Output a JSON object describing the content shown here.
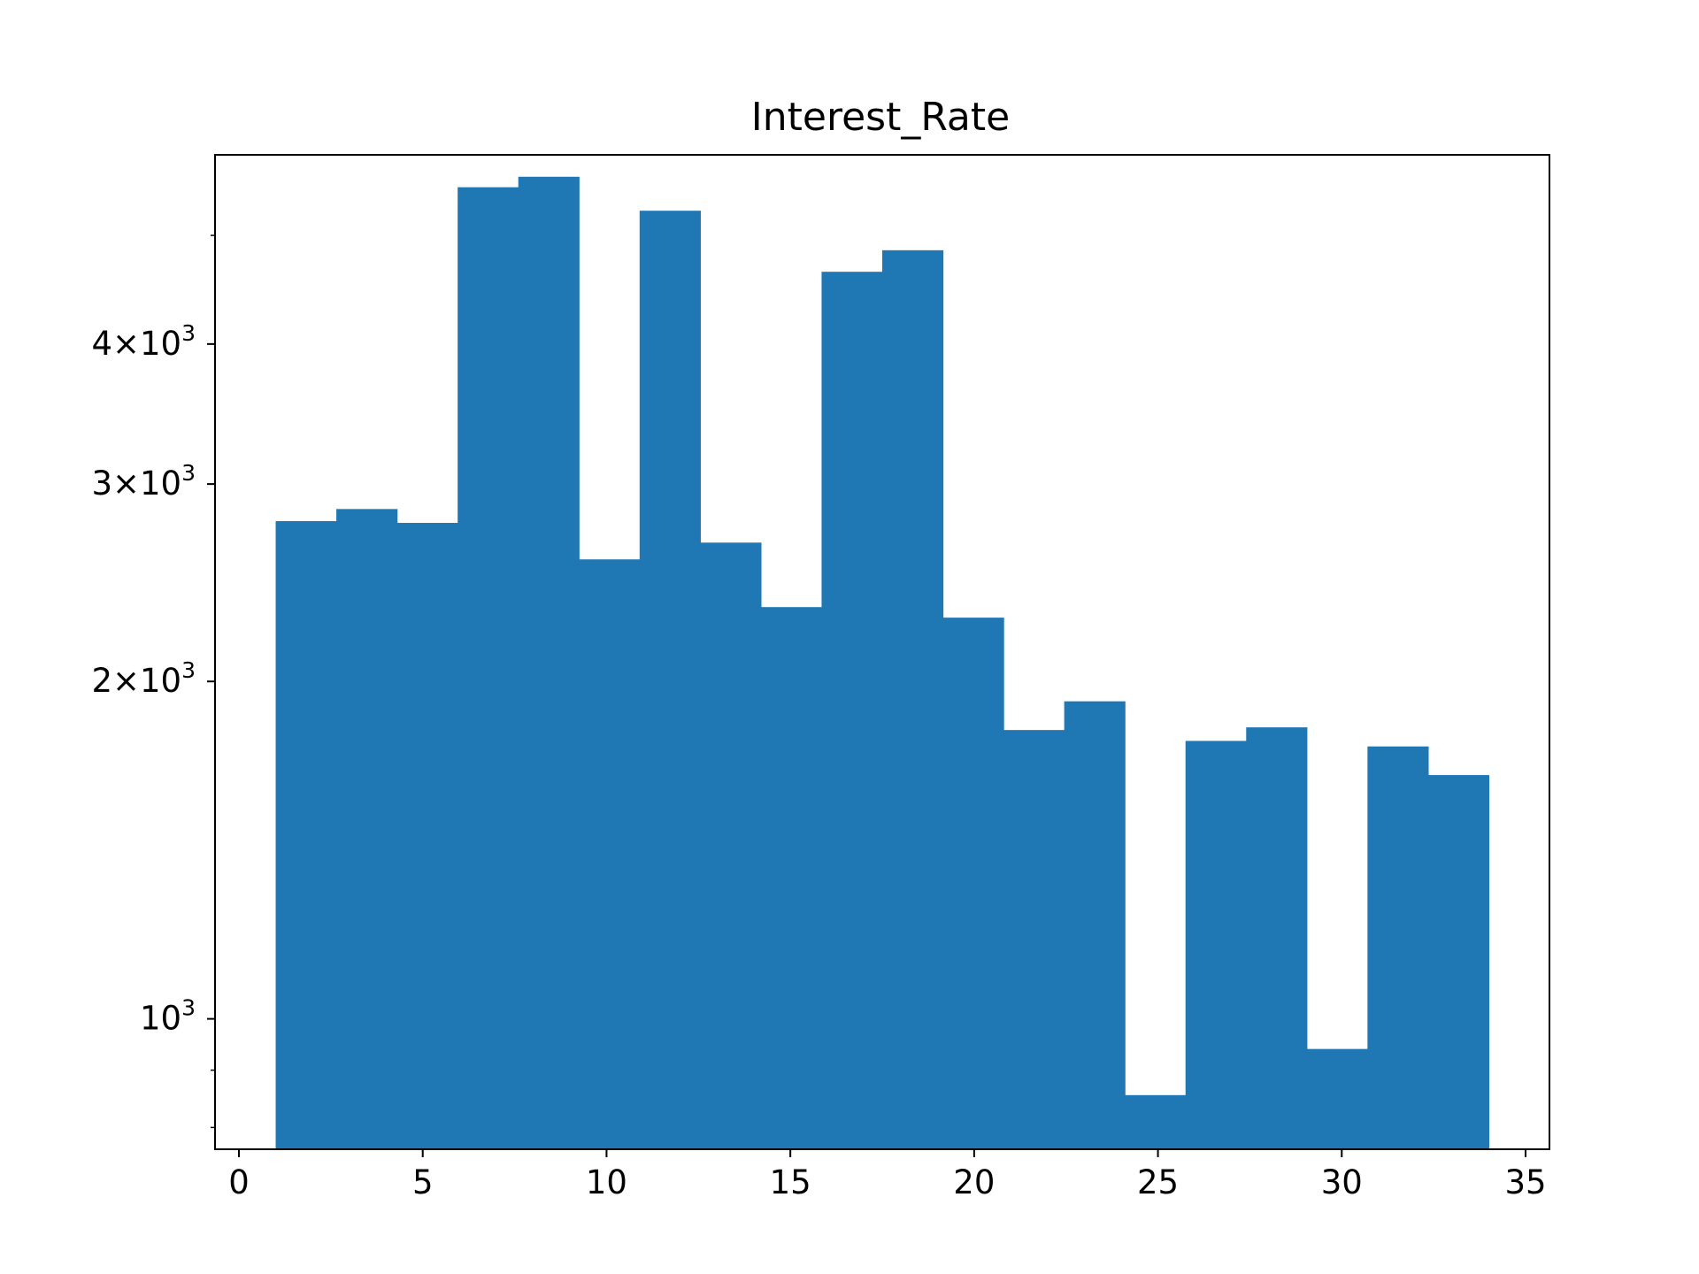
{
  "chart_data": {
    "type": "bar",
    "title": "Interest_Rate",
    "xlabel": "",
    "ylabel": "",
    "yscale": "log",
    "grid": false,
    "xlim": [
      -0.65,
      35.65
    ],
    "ylim": [
      765,
      5900
    ],
    "x_ticks": [
      0,
      5,
      10,
      15,
      20,
      25,
      30,
      35
    ],
    "x_tick_labels": [
      "0",
      "5",
      "10",
      "15",
      "20",
      "25",
      "30",
      "35"
    ],
    "y_major_ticks": [
      {
        "value": 1000,
        "base": "10",
        "exp": "3"
      },
      {
        "value": 2000,
        "base": "2×10",
        "exp": "3"
      },
      {
        "value": 3000,
        "base": "3×10",
        "exp": "3"
      },
      {
        "value": 4000,
        "base": "4×10",
        "exp": "3"
      }
    ],
    "y_minor_ticks": [
      800,
      900,
      5000
    ],
    "bar_color": "#1f77b4",
    "bins": [
      {
        "x0": 1.0,
        "x1": 2.65,
        "value": 2780
      },
      {
        "x0": 2.65,
        "x1": 4.3,
        "value": 2850
      },
      {
        "x0": 4.3,
        "x1": 5.95,
        "value": 2770
      },
      {
        "x0": 5.95,
        "x1": 7.6,
        "value": 5520
      },
      {
        "x0": 7.6,
        "x1": 9.25,
        "value": 5640
      },
      {
        "x0": 9.25,
        "x1": 10.9,
        "value": 2570
      },
      {
        "x0": 10.9,
        "x1": 12.55,
        "value": 5260
      },
      {
        "x0": 12.55,
        "x1": 14.2,
        "value": 2660
      },
      {
        "x0": 14.2,
        "x1": 15.85,
        "value": 2330
      },
      {
        "x0": 15.85,
        "x1": 17.5,
        "value": 4640
      },
      {
        "x0": 17.5,
        "x1": 19.15,
        "value": 4850
      },
      {
        "x0": 19.15,
        "x1": 20.8,
        "value": 2280
      },
      {
        "x0": 20.8,
        "x1": 22.45,
        "value": 1810
      },
      {
        "x0": 22.45,
        "x1": 24.1,
        "value": 1920
      },
      {
        "x0": 24.1,
        "x1": 25.75,
        "value": 855
      },
      {
        "x0": 25.75,
        "x1": 27.4,
        "value": 1770
      },
      {
        "x0": 27.4,
        "x1": 29.05,
        "value": 1820
      },
      {
        "x0": 29.05,
        "x1": 30.7,
        "value": 940
      },
      {
        "x0": 30.7,
        "x1": 32.35,
        "value": 1750
      },
      {
        "x0": 32.35,
        "x1": 34.0,
        "value": 1650
      }
    ]
  }
}
